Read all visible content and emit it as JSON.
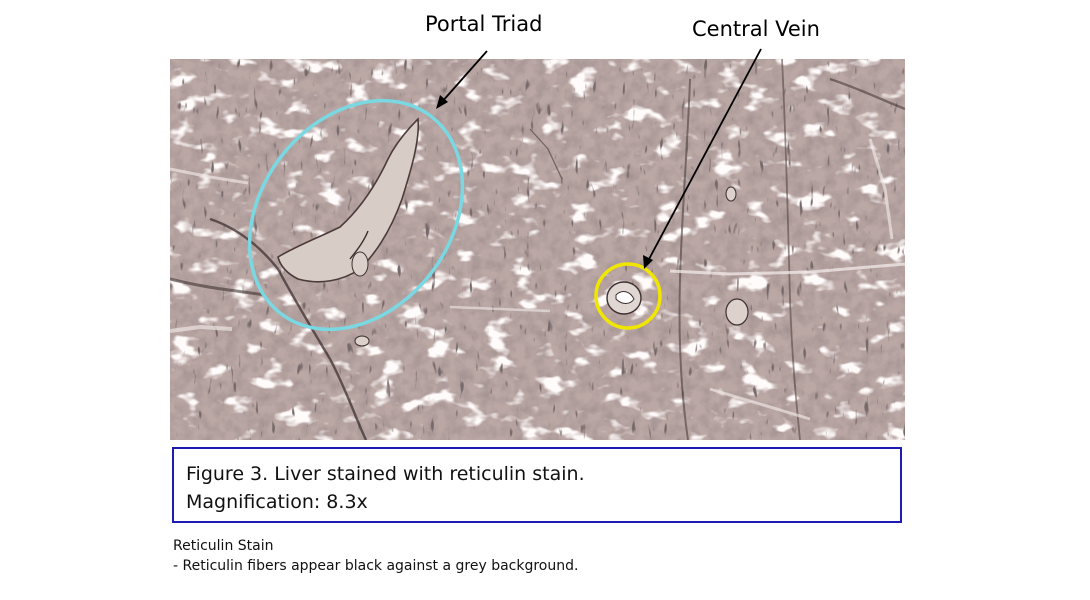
{
  "annotations": {
    "portal_triad": "Portal Triad",
    "central_vein": "Central Vein"
  },
  "caption": {
    "line1": "Figure 3. Liver stained with reticulin stain.",
    "line2": "Magnification: 8.3x"
  },
  "notes": {
    "heading": "Reticulin Stain",
    "detail": "- Reticulin fibers appear black against a grey background."
  },
  "colors": {
    "portal_triad_outline": "#7ad8e2",
    "central_vein_outline": "#f0e600",
    "caption_border": "#1c1cb4",
    "tissue_base": "#b7a4a2"
  }
}
